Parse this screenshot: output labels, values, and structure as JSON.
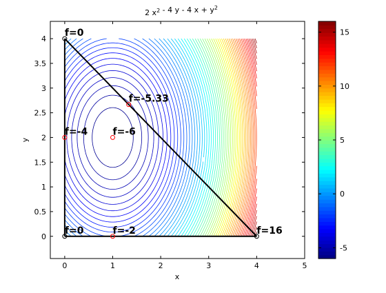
{
  "chart_data": {
    "type": "contour",
    "title": "2 x² - 4 y - 4 x + y²",
    "xlabel": "x",
    "ylabel": "y",
    "xlim": [
      -0.3,
      5
    ],
    "ylim": [
      -0.45,
      4.35
    ],
    "grid": false,
    "x_ticks": [
      0,
      1,
      2,
      3,
      4,
      5
    ],
    "y_ticks": [
      0,
      0.5,
      1,
      1.5,
      2,
      2.5,
      3,
      3.5,
      4
    ],
    "function": {
      "a_x2": 2,
      "b_y2": 1,
      "c_x": -4,
      "d_y": -4,
      "domain_x": [
        0,
        4
      ],
      "domain_y": [
        0,
        4
      ],
      "min": -6,
      "max": 16,
      "level_count": 60
    },
    "colormap": "jet",
    "colorbar": {
      "ticks": [
        -5,
        0,
        5,
        10,
        15
      ],
      "range": [
        -6,
        16
      ]
    },
    "region_vertices": [
      {
        "x": 0,
        "y": 4
      },
      {
        "x": 4,
        "y": 0
      },
      {
        "x": 0,
        "y": 0
      }
    ],
    "points": [
      {
        "x": 0,
        "y": 4,
        "label": "f=0",
        "style": "vertex"
      },
      {
        "x": 0,
        "y": 0,
        "label": "f=0",
        "style": "vertex"
      },
      {
        "x": 4,
        "y": 0,
        "label": "f=16",
        "style": "vertex"
      },
      {
        "x": 1,
        "y": 2,
        "label": "f=-6",
        "style": "candidate"
      },
      {
        "x": 1.333,
        "y": 2.667,
        "label": "f=-5.33",
        "style": "candidate"
      },
      {
        "x": 0,
        "y": 2,
        "label": "f=-4",
        "style": "candidate"
      },
      {
        "x": 1,
        "y": 0,
        "label": "f=-2",
        "style": "candidate"
      }
    ]
  }
}
